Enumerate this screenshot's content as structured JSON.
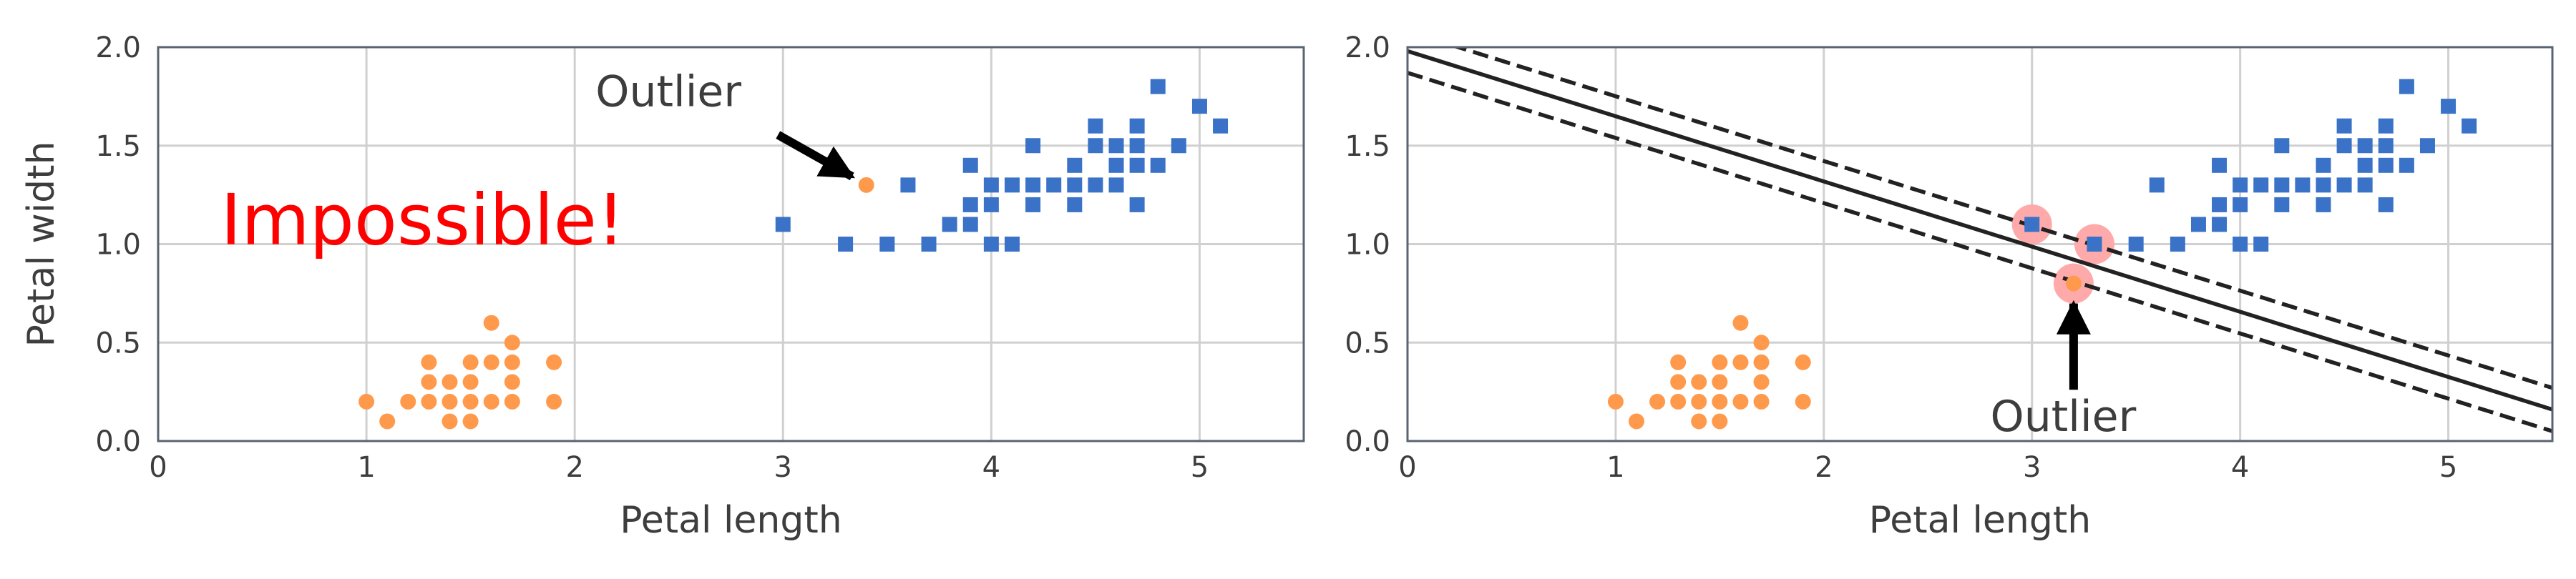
{
  "chart_data": [
    {
      "type": "scatter",
      "xlabel": "Petal length",
      "ylabel": "Petal width",
      "xlim": [
        0,
        5.5
      ],
      "ylim": [
        0,
        2.0
      ],
      "xticks": [
        0,
        1,
        2,
        3,
        4,
        5
      ],
      "yticks": [
        0.0,
        0.5,
        1.0,
        1.5,
        2.0
      ],
      "grid": true,
      "series": [
        {
          "marker": "circle",
          "color": "#ff9a4d",
          "points": [
            [
              1.0,
              0.2
            ],
            [
              1.1,
              0.1
            ],
            [
              1.2,
              0.2
            ],
            [
              1.3,
              0.2
            ],
            [
              1.3,
              0.3
            ],
            [
              1.3,
              0.4
            ],
            [
              1.4,
              0.1
            ],
            [
              1.4,
              0.2
            ],
            [
              1.4,
              0.3
            ],
            [
              1.5,
              0.1
            ],
            [
              1.5,
              0.2
            ],
            [
              1.5,
              0.3
            ],
            [
              1.5,
              0.4
            ],
            [
              1.6,
              0.2
            ],
            [
              1.6,
              0.4
            ],
            [
              1.6,
              0.6
            ],
            [
              1.7,
              0.2
            ],
            [
              1.7,
              0.3
            ],
            [
              1.7,
              0.4
            ],
            [
              1.7,
              0.5
            ],
            [
              1.9,
              0.2
            ],
            [
              1.9,
              0.4
            ]
          ]
        },
        {
          "marker": "circle",
          "color": "#ff9a4d",
          "points": [
            [
              3.4,
              1.3
            ]
          ]
        },
        {
          "marker": "square",
          "color": "#3a72c8",
          "points": [
            [
              3.0,
              1.1
            ],
            [
              3.3,
              1.0
            ],
            [
              3.5,
              1.0
            ],
            [
              3.6,
              1.3
            ],
            [
              3.7,
              1.0
            ],
            [
              3.8,
              1.1
            ],
            [
              3.9,
              1.1
            ],
            [
              3.9,
              1.2
            ],
            [
              3.9,
              1.4
            ],
            [
              4.0,
              1.0
            ],
            [
              4.0,
              1.2
            ],
            [
              4.0,
              1.3
            ],
            [
              4.1,
              1.0
            ],
            [
              4.1,
              1.3
            ],
            [
              4.2,
              1.2
            ],
            [
              4.2,
              1.3
            ],
            [
              4.2,
              1.5
            ],
            [
              4.3,
              1.3
            ],
            [
              4.4,
              1.2
            ],
            [
              4.4,
              1.3
            ],
            [
              4.4,
              1.4
            ],
            [
              4.5,
              1.3
            ],
            [
              4.5,
              1.5
            ],
            [
              4.5,
              1.6
            ],
            [
              4.6,
              1.3
            ],
            [
              4.6,
              1.4
            ],
            [
              4.6,
              1.5
            ],
            [
              4.7,
              1.2
            ],
            [
              4.7,
              1.4
            ],
            [
              4.7,
              1.5
            ],
            [
              4.7,
              1.6
            ],
            [
              4.8,
              1.4
            ],
            [
              4.8,
              1.8
            ],
            [
              4.9,
              1.5
            ],
            [
              5.0,
              1.7
            ],
            [
              5.1,
              1.6
            ]
          ]
        }
      ],
      "annotations": [
        {
          "text": "Impossible!",
          "color": "#ff0000",
          "x": 0.3,
          "y": 1.0
        },
        {
          "text": "Outlier",
          "x": 2.1,
          "y": 1.7,
          "arrow_to": [
            3.4,
            1.3
          ]
        }
      ]
    },
    {
      "type": "scatter",
      "xlabel": "Petal length",
      "ylabel": "",
      "xlim": [
        0,
        5.5
      ],
      "ylim": [
        0,
        2.0
      ],
      "xticks": [
        0,
        1,
        2,
        3,
        4,
        5
      ],
      "yticks": [
        0.0,
        0.5,
        1.0,
        1.5,
        2.0
      ],
      "grid": true,
      "series": [
        {
          "marker": "circle",
          "color": "#ff9a4d",
          "points": [
            [
              1.0,
              0.2
            ],
            [
              1.1,
              0.1
            ],
            [
              1.2,
              0.2
            ],
            [
              1.3,
              0.2
            ],
            [
              1.3,
              0.3
            ],
            [
              1.3,
              0.4
            ],
            [
              1.4,
              0.1
            ],
            [
              1.4,
              0.2
            ],
            [
              1.4,
              0.3
            ],
            [
              1.5,
              0.1
            ],
            [
              1.5,
              0.2
            ],
            [
              1.5,
              0.3
            ],
            [
              1.5,
              0.4
            ],
            [
              1.6,
              0.2
            ],
            [
              1.6,
              0.4
            ],
            [
              1.6,
              0.6
            ],
            [
              1.7,
              0.2
            ],
            [
              1.7,
              0.3
            ],
            [
              1.7,
              0.4
            ],
            [
              1.7,
              0.5
            ],
            [
              1.9,
              0.2
            ],
            [
              1.9,
              0.4
            ]
          ]
        },
        {
          "marker": "circle",
          "color": "#ff9a4d",
          "points": [
            [
              3.2,
              0.8
            ]
          ]
        },
        {
          "marker": "square",
          "color": "#3a72c8",
          "points": [
            [
              3.0,
              1.1
            ],
            [
              3.3,
              1.0
            ],
            [
              3.5,
              1.0
            ],
            [
              3.6,
              1.3
            ],
            [
              3.7,
              1.0
            ],
            [
              3.8,
              1.1
            ],
            [
              3.9,
              1.1
            ],
            [
              3.9,
              1.2
            ],
            [
              3.9,
              1.4
            ],
            [
              4.0,
              1.0
            ],
            [
              4.0,
              1.2
            ],
            [
              4.0,
              1.3
            ],
            [
              4.1,
              1.0
            ],
            [
              4.1,
              1.3
            ],
            [
              4.2,
              1.2
            ],
            [
              4.2,
              1.3
            ],
            [
              4.2,
              1.5
            ],
            [
              4.3,
              1.3
            ],
            [
              4.4,
              1.2
            ],
            [
              4.4,
              1.3
            ],
            [
              4.4,
              1.4
            ],
            [
              4.5,
              1.3
            ],
            [
              4.5,
              1.5
            ],
            [
              4.5,
              1.6
            ],
            [
              4.6,
              1.3
            ],
            [
              4.6,
              1.4
            ],
            [
              4.6,
              1.5
            ],
            [
              4.7,
              1.2
            ],
            [
              4.7,
              1.4
            ],
            [
              4.7,
              1.5
            ],
            [
              4.7,
              1.6
            ],
            [
              4.8,
              1.4
            ],
            [
              4.8,
              1.8
            ],
            [
              4.9,
              1.5
            ],
            [
              5.0,
              1.7
            ],
            [
              5.1,
              1.6
            ]
          ]
        }
      ],
      "support_vectors": {
        "color": "#ffaaaa",
        "points": [
          [
            3.0,
            1.1
          ],
          [
            3.3,
            1.0
          ],
          [
            3.2,
            0.8
          ]
        ]
      },
      "lines": [
        {
          "style": "solid",
          "color": "#222222",
          "points": [
            [
              0,
              1.98
            ],
            [
              5.5,
              0.16
            ]
          ]
        },
        {
          "style": "dashed",
          "color": "#222222",
          "points": [
            [
              0,
              2.08
            ],
            [
              5.5,
              0.27
            ]
          ]
        },
        {
          "style": "dashed",
          "color": "#222222",
          "points": [
            [
              0,
              1.87
            ],
            [
              5.5,
              0.05
            ]
          ]
        }
      ],
      "annotations": [
        {
          "text": "Outlier",
          "x": 2.8,
          "y": 0.05,
          "arrow_to": [
            3.2,
            0.8
          ]
        }
      ]
    }
  ]
}
